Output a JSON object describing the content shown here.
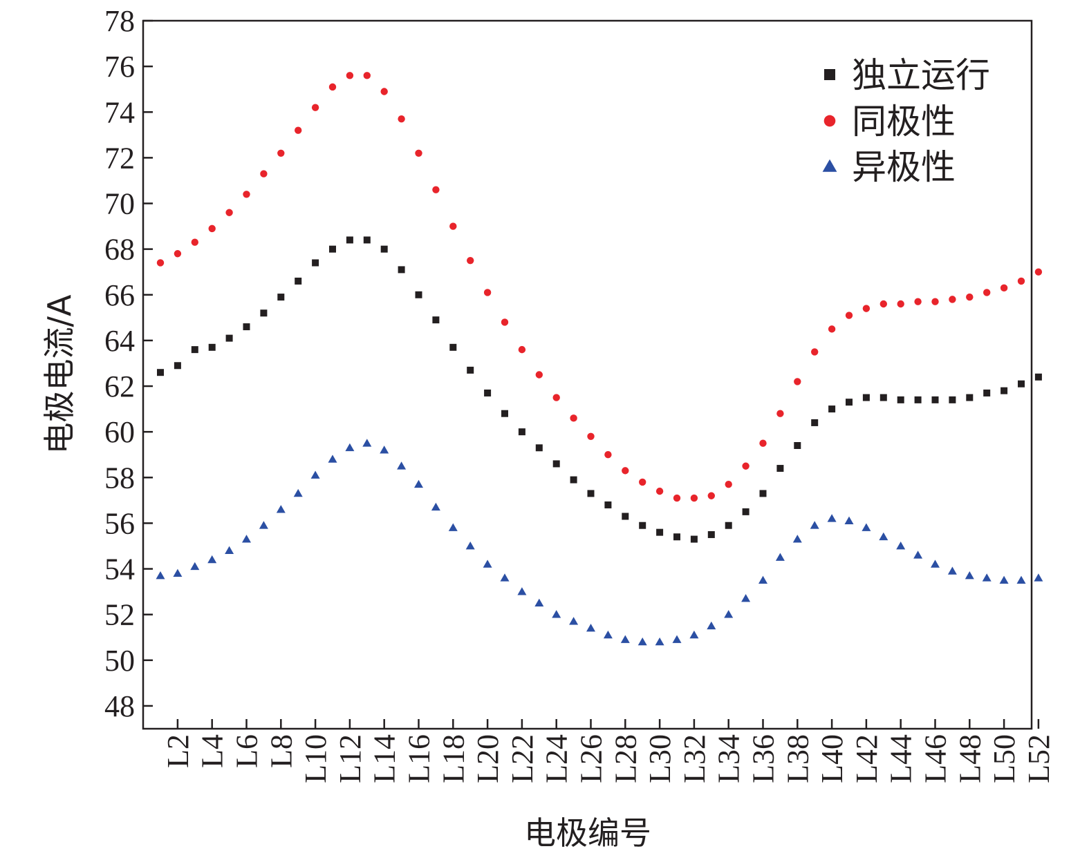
{
  "chart_data": {
    "type": "scatter",
    "title": "",
    "xlabel": "电极编号",
    "ylabel": "电极电流/A",
    "ylim": [
      47,
      78
    ],
    "yticks": [
      48,
      50,
      52,
      54,
      56,
      58,
      60,
      62,
      64,
      66,
      68,
      70,
      72,
      74,
      76,
      78
    ],
    "xlim": [
      1,
      52
    ],
    "xtick_labels": [
      "L2",
      "L4",
      "L6",
      "L8",
      "L10",
      "L12",
      "L14",
      "L16",
      "L18",
      "L20",
      "L22",
      "L24",
      "L26",
      "L28",
      "L30",
      "L32",
      "L34",
      "L36",
      "L38",
      "L40",
      "L42",
      "L44",
      "L46",
      "L48",
      "L50",
      "L52"
    ],
    "grid": false,
    "legend_position": "top-right",
    "x": [
      1,
      2,
      3,
      4,
      5,
      6,
      7,
      8,
      9,
      10,
      11,
      12,
      13,
      14,
      15,
      16,
      17,
      18,
      19,
      20,
      21,
      22,
      23,
      24,
      25,
      26,
      27,
      28,
      29,
      30,
      31,
      32,
      33,
      34,
      35,
      36,
      37,
      38,
      39,
      40,
      41,
      42,
      43,
      44,
      45,
      46,
      47,
      48,
      49,
      50,
      51,
      52
    ],
    "series": [
      {
        "name": "独立运行",
        "marker": "square",
        "color": "#231f20",
        "values": [
          62.6,
          62.9,
          63.6,
          63.7,
          64.1,
          64.6,
          65.2,
          65.9,
          66.6,
          67.4,
          68.0,
          68.4,
          68.4,
          68.0,
          67.1,
          66.0,
          64.9,
          63.7,
          62.7,
          61.7,
          60.8,
          60.0,
          59.3,
          58.6,
          57.9,
          57.3,
          56.8,
          56.3,
          55.9,
          55.6,
          55.4,
          55.3,
          55.5,
          55.9,
          56.5,
          57.3,
          58.4,
          59.4,
          60.4,
          61.0,
          61.3,
          61.5,
          61.5,
          61.4,
          61.4,
          61.4,
          61.4,
          61.5,
          61.7,
          61.8,
          62.1,
          62.4
        ]
      },
      {
        "name": "同极性",
        "marker": "circle",
        "color": "#e8242b",
        "values": [
          67.4,
          67.8,
          68.3,
          68.9,
          69.6,
          70.4,
          71.3,
          72.2,
          73.2,
          74.2,
          75.1,
          75.6,
          75.6,
          74.9,
          73.7,
          72.2,
          70.6,
          69.0,
          67.5,
          66.1,
          64.8,
          63.6,
          62.5,
          61.5,
          60.6,
          59.8,
          59.0,
          58.3,
          57.8,
          57.4,
          57.1,
          57.1,
          57.2,
          57.7,
          58.5,
          59.5,
          60.8,
          62.2,
          63.5,
          64.5,
          65.1,
          65.4,
          65.6,
          65.6,
          65.7,
          65.7,
          65.8,
          65.9,
          66.1,
          66.3,
          66.6,
          67.0
        ]
      },
      {
        "name": "异极性",
        "marker": "triangle",
        "color": "#2b4fa3",
        "values": [
          53.7,
          53.8,
          54.1,
          54.4,
          54.8,
          55.3,
          55.9,
          56.6,
          57.3,
          58.1,
          58.8,
          59.3,
          59.5,
          59.2,
          58.5,
          57.7,
          56.7,
          55.8,
          55.0,
          54.2,
          53.6,
          53.0,
          52.5,
          52.0,
          51.7,
          51.4,
          51.1,
          50.9,
          50.8,
          50.8,
          50.9,
          51.1,
          51.5,
          52.0,
          52.7,
          53.5,
          54.5,
          55.3,
          55.9,
          56.2,
          56.1,
          55.8,
          55.4,
          55.0,
          54.6,
          54.2,
          53.9,
          53.7,
          53.6,
          53.5,
          53.5,
          53.6
        ]
      }
    ]
  }
}
